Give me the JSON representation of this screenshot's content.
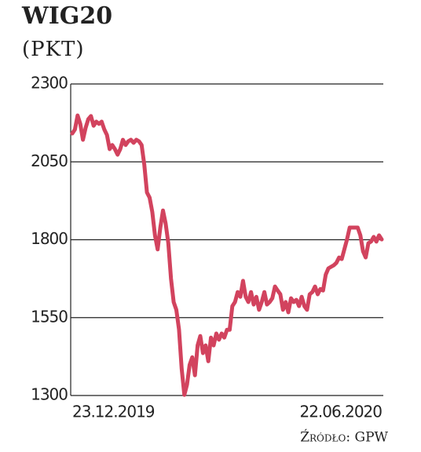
{
  "chart_data": {
    "type": "line",
    "title": "WIG20",
    "subtitle": "(PKT)",
    "source": "Źródło: GPW",
    "categories": [
      "23.12.2019",
      null,
      null,
      null,
      null,
      null,
      null,
      null,
      null,
      null,
      null,
      null,
      null,
      null,
      null,
      null,
      null,
      null,
      null,
      null,
      null,
      null,
      null,
      null,
      null,
      null,
      null,
      null,
      null,
      null,
      null,
      null,
      null,
      null,
      null,
      null,
      null,
      null,
      null,
      null,
      null,
      null,
      null,
      null,
      null,
      null,
      null,
      null,
      null,
      null,
      null,
      null,
      null,
      null,
      null,
      null,
      null,
      null,
      null,
      null,
      null,
      null,
      null,
      null,
      null,
      null,
      null,
      null,
      null,
      null,
      null,
      null,
      null,
      null,
      null,
      null,
      null,
      null,
      null,
      null,
      null,
      null,
      null,
      null,
      null,
      null,
      null,
      null,
      null,
      null,
      null,
      null,
      null,
      null,
      null,
      null,
      null,
      null,
      null,
      null,
      null,
      null,
      null,
      null,
      null,
      null,
      null,
      null,
      null,
      null,
      null,
      null,
      null,
      null,
      null,
      null,
      "22.06.2020"
    ],
    "values": [
      2141,
      2154,
      2199,
      2172,
      2121,
      2159,
      2187,
      2197,
      2166,
      2179,
      2172,
      2179,
      2154,
      2136,
      2091,
      2104,
      2091,
      2073,
      2091,
      2121,
      2104,
      2116,
      2121,
      2111,
      2121,
      2116,
      2104,
      2041,
      1952,
      1935,
      1889,
      1814,
      1769,
      1839,
      1894,
      1852,
      1789,
      1675,
      1600,
      1575,
      1512,
      1386,
      1302,
      1335,
      1398,
      1423,
      1365,
      1461,
      1491,
      1436,
      1461,
      1410,
      1486,
      1461,
      1499,
      1479,
      1499,
      1486,
      1511,
      1511,
      1587,
      1600,
      1632,
      1617,
      1668,
      1617,
      1600,
      1632,
      1592,
      1617,
      1575,
      1600,
      1632,
      1592,
      1600,
      1612,
      1650,
      1637,
      1625,
      1575,
      1600,
      1567,
      1612,
      1600,
      1607,
      1587,
      1617,
      1587,
      1575,
      1625,
      1632,
      1650,
      1625,
      1642,
      1637,
      1688,
      1708,
      1713,
      1718,
      1726,
      1743,
      1738,
      1769,
      1801,
      1839,
      1839,
      1839,
      1839,
      1814,
      1763,
      1743,
      1789,
      1794,
      1809,
      1794,
      1814,
      1801
    ],
    "color": "#d2435e",
    "ylim": [
      1300,
      2300
    ],
    "yticks": [
      1300,
      1550,
      1800,
      2050,
      2300
    ],
    "grid": true
  }
}
